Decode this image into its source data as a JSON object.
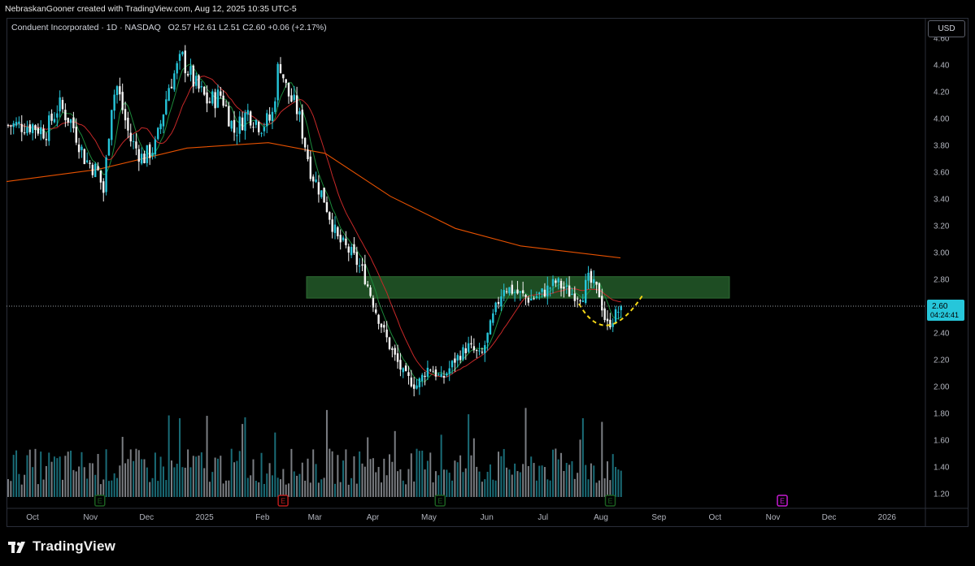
{
  "credit": "NebraskanGooner created with TradingView.com, Aug 12, 2025 10:35 UTC-5",
  "header": {
    "symbol": "Conduent Incorporated · 1D · NASDAQ",
    "o_label": "O",
    "o": "2.57",
    "h_label": "H",
    "h": "2.61",
    "l_label": "L",
    "l": "2.51",
    "c_label": "C",
    "c": "2.60",
    "change": "+0.06 (+2.17%)"
  },
  "currency_button": "USD",
  "price_label": {
    "price": "2.60",
    "countdown": "04:24:41"
  },
  "brand": "TradingView",
  "colors": {
    "up": "#26c6da",
    "down": "#f5f5f5",
    "ma_short": "#1b8a3a",
    "ma_mid": "#c62828",
    "ma_long": "#e65100",
    "zone": "#1e4d23",
    "cup": "#f5d716",
    "earnings_green": "#1b5e20",
    "earnings_red": "#b71c1c",
    "earnings_future": "#c51bd1"
  },
  "icons": {
    "earnings": "earnings-marker-icon",
    "logo": "tradingview-logo-icon"
  },
  "chart_data": {
    "type": "candlestick",
    "title": "Conduent Incorporated · 1D · NASDAQ",
    "ylim": [
      1.1,
      4.6
    ],
    "y_ticks": [
      "4.60",
      "4.40",
      "4.20",
      "4.00",
      "3.80",
      "3.60",
      "3.40",
      "3.20",
      "3.00",
      "2.80",
      "2.60",
      "2.40",
      "2.20",
      "2.00",
      "1.80",
      "1.60",
      "1.40",
      "1.20"
    ],
    "x_ticks": [
      "Oct",
      "Nov",
      "Dec",
      "2025",
      "Feb",
      "Mar",
      "Apr",
      "May",
      "Jun",
      "Jul",
      "Aug",
      "Sep",
      "Oct",
      "Nov",
      "Dec",
      "2026"
    ],
    "close_path": [
      [
        "2024-10-01",
        3.95
      ],
      [
        "2024-10-08",
        3.9
      ],
      [
        "2024-10-15",
        4.1
      ],
      [
        "2024-10-22",
        3.97
      ],
      [
        "2024-10-29",
        3.7
      ],
      [
        "2024-11-05",
        3.6
      ],
      [
        "2024-11-08",
        3.45
      ],
      [
        "2024-11-12",
        4.1
      ],
      [
        "2024-11-15",
        4.25
      ],
      [
        "2024-11-22",
        3.85
      ],
      [
        "2024-11-29",
        3.7
      ],
      [
        "2024-12-06",
        3.8
      ],
      [
        "2024-12-13",
        4.25
      ],
      [
        "2024-12-20",
        4.45
      ],
      [
        "2024-12-27",
        4.25
      ],
      [
        "2025-01-03",
        4.12
      ],
      [
        "2025-01-10",
        4.18
      ],
      [
        "2025-01-17",
        3.9
      ],
      [
        "2025-01-24",
        4.05
      ],
      [
        "2025-01-31",
        3.95
      ],
      [
        "2025-02-06",
        4.0
      ],
      [
        "2025-02-10",
        4.45
      ],
      [
        "2025-02-14",
        4.2
      ],
      [
        "2025-02-20",
        4.05
      ],
      [
        "2025-02-27",
        3.6
      ],
      [
        "2025-03-06",
        3.4
      ],
      [
        "2025-03-13",
        3.1
      ],
      [
        "2025-03-20",
        3.0
      ],
      [
        "2025-03-27",
        2.85
      ],
      [
        "2025-04-03",
        2.55
      ],
      [
        "2025-04-10",
        2.3
      ],
      [
        "2025-04-17",
        2.1
      ],
      [
        "2025-04-24",
        2.0
      ],
      [
        "2025-05-01",
        2.15
      ],
      [
        "2025-05-08",
        2.05
      ],
      [
        "2025-05-15",
        2.2
      ],
      [
        "2025-05-22",
        2.3
      ],
      [
        "2025-05-29",
        2.22
      ],
      [
        "2025-06-05",
        2.55
      ],
      [
        "2025-06-10",
        2.75
      ],
      [
        "2025-06-17",
        2.7
      ],
      [
        "2025-06-24",
        2.65
      ],
      [
        "2025-07-01",
        2.7
      ],
      [
        "2025-07-08",
        2.78
      ],
      [
        "2025-07-15",
        2.7
      ],
      [
        "2025-07-22",
        2.68
      ],
      [
        "2025-07-25",
        2.8
      ],
      [
        "2025-07-31",
        2.7
      ],
      [
        "2025-08-04",
        2.45
      ],
      [
        "2025-08-07",
        2.5
      ],
      [
        "2025-08-12",
        2.6
      ]
    ],
    "ma_long": [
      [
        3.5
      ],
      [
        3.8
      ],
      [
        3.75
      ],
      [
        3.4
      ],
      [
        3.05
      ],
      [
        2.95
      ]
    ],
    "resistance_zone": [
      2.66,
      2.82
    ],
    "last_price": 2.6,
    "volume_scale_note": "relative",
    "earnings_events": [
      {
        "date": "2024-11-06",
        "type": "green"
      },
      {
        "date": "2025-02-12",
        "type": "red"
      },
      {
        "date": "2025-05-07",
        "type": "green"
      },
      {
        "date": "2025-08-06",
        "type": "green"
      },
      {
        "date": "2025-11-06",
        "type": "future"
      }
    ],
    "earnings_label": "E"
  }
}
